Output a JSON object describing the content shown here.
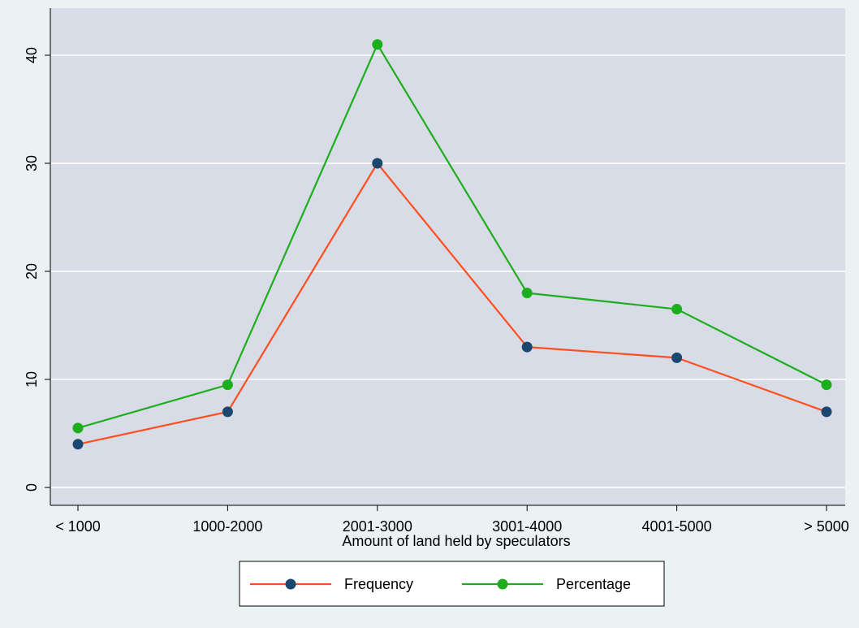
{
  "chart_data": {
    "type": "line",
    "title": "",
    "xlabel": "Amount of land held by speculators",
    "ylabel": "",
    "categories": [
      "< 1000",
      "1000-2000",
      "2001-3000",
      "3001-4000",
      "4001-5000",
      "> 5000"
    ],
    "ylim": [
      0,
      40
    ],
    "yticks": [
      0,
      10,
      20,
      30,
      40
    ],
    "grid": true,
    "legend_position": "bottom",
    "series": [
      {
        "name": "Frequency",
        "values": [
          4,
          7,
          30,
          13,
          12,
          7
        ],
        "line_color": "#ff4f1f",
        "marker_color": "#1a476f"
      },
      {
        "name": "Percentage",
        "values": [
          5.5,
          9.5,
          41,
          18,
          16.5,
          9.5
        ],
        "line_color": "#1cae1c",
        "marker_color": "#1cae1c"
      }
    ],
    "colors": {
      "background": "#eaf2f3",
      "plot_background": "#d8dce6",
      "gridline": "#ffffff"
    }
  }
}
